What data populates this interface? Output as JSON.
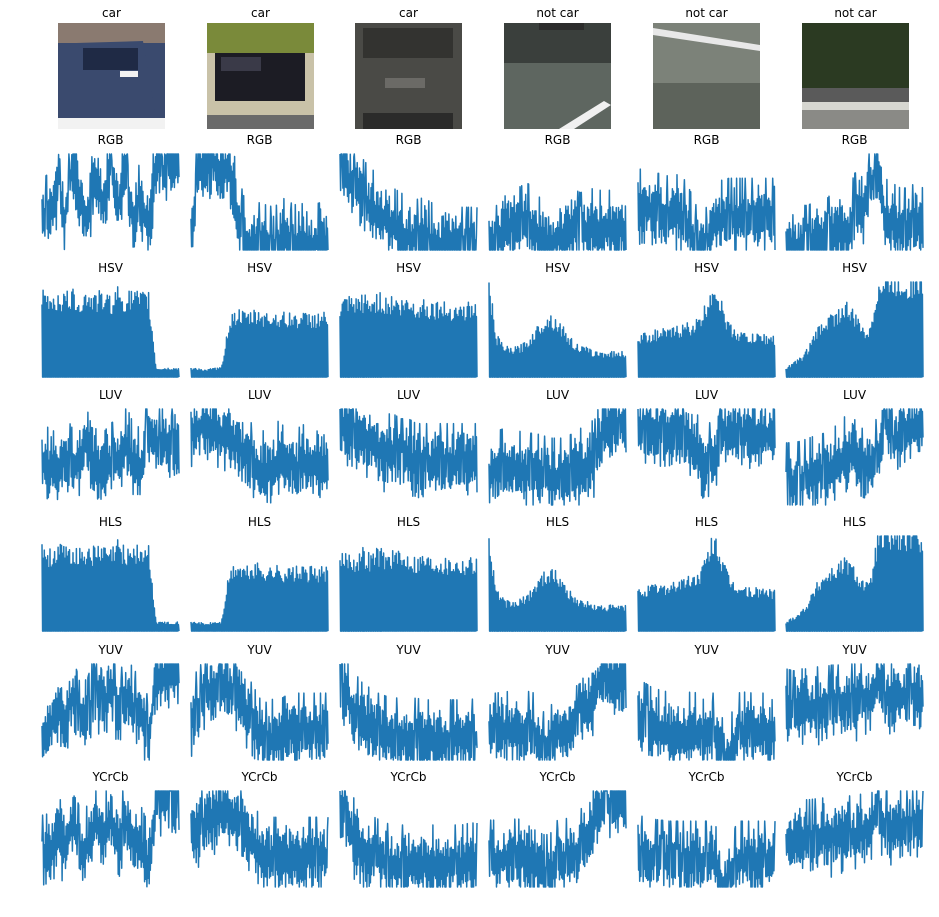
{
  "figure": {
    "line_color": "#1f77b4",
    "columns": [
      {
        "label": "car",
        "image": "car-rear-blue-hatchback"
      },
      {
        "label": "car",
        "image": "car-rear-dark-hatchback-street"
      },
      {
        "label": "car",
        "image": "car-rear-grey-closeup"
      },
      {
        "label": "not car",
        "image": "road-asphalt-white-stripe"
      },
      {
        "label": "not car",
        "image": "road-asphalt-lane-line"
      },
      {
        "label": "not car",
        "image": "trees-guardrail"
      }
    ],
    "rows": [
      "RGB",
      "HSV",
      "LUV",
      "HLS",
      "YUV",
      "YCrCb"
    ]
  },
  "chart_data": {
    "type": "line",
    "description_of_values": "each subplot is a flattened spatially-binned color feature vector; no axes or ticks are printed",
    "grid": false,
    "axes_visible": false,
    "image_titles": [
      "car",
      "car",
      "car",
      "not car",
      "not car",
      "not car"
    ],
    "subplot_titles": [
      "RGB",
      "HSV",
      "LUV",
      "HLS",
      "YUV",
      "YCrCb"
    ],
    "panels": [
      [
        {
          "features": [
            0.4,
            0.45,
            0.7,
            0.4,
            0.95,
            0.6,
            0.4,
            0.8,
            0.55,
            0.95,
            0.5,
            0.9,
            0.35,
            0.6,
            0.25,
            1.0,
            0.85,
            1.0,
            0.95
          ]
        },
        {
          "features": [
            0.2,
            0.9,
            0.95,
            0.98,
            0.9,
            0.95,
            0.5,
            0.2,
            0.1,
            0.15,
            0.12,
            0.1,
            0.2,
            0.15,
            0.12,
            0.15,
            0.12,
            0.15,
            0.15
          ]
        },
        {
          "features": [
            0.95,
            0.8,
            0.7,
            0.6,
            0.5,
            0.45,
            0.4,
            0.3,
            0.25,
            0.2,
            0.18,
            0.2,
            0.15,
            0.12,
            0.15,
            0.12,
            0.1,
            0.1,
            0.1
          ]
        },
        {
          "features": [
            0.1,
            0.12,
            0.3,
            0.33,
            0.31,
            0.35,
            0.3,
            0.15,
            0.1,
            0.2,
            0.2,
            0.3,
            0.25,
            0.28,
            0.3,
            0.26,
            0.28,
            0.3,
            0.3
          ]
        },
        {
          "features": [
            0.5,
            0.48,
            0.45,
            0.45,
            0.42,
            0.44,
            0.4,
            0.25,
            0.05,
            0.1,
            0.35,
            0.38,
            0.4,
            0.4,
            0.4,
            0.4,
            0.4,
            0.4,
            0.4
          ]
        },
        {
          "features": [
            0.1,
            0.1,
            0.12,
            0.12,
            0.2,
            0.15,
            0.25,
            0.3,
            0.2,
            0.45,
            0.5,
            0.7,
            0.95,
            0.4,
            0.35,
            0.3,
            0.3,
            0.35,
            0.3
          ]
        }
      ],
      [
        {
          "features": [
            0.82,
            0.78,
            0.8,
            0.79,
            0.81,
            0.77,
            0.82,
            0.78,
            0.8,
            0.76,
            0.85,
            0.78,
            0.82,
            0.78,
            0.8,
            0.1,
            0.1,
            0.1,
            0.1
          ]
        },
        {
          "features": [
            0.1,
            0.1,
            0.08,
            0.1,
            0.1,
            0.55,
            0.65,
            0.6,
            0.62,
            0.64,
            0.6,
            0.62,
            0.6,
            0.6,
            0.6,
            0.6,
            0.6,
            0.6,
            0.6
          ]
        },
        {
          "features": [
            0.7,
            0.75,
            0.72,
            0.78,
            0.73,
            0.8,
            0.74,
            0.77,
            0.72,
            0.75,
            0.7,
            0.74,
            0.7,
            0.72,
            0.68,
            0.7,
            0.68,
            0.7,
            0.7
          ]
        },
        {
          "features": [
            0.9,
            0.4,
            0.3,
            0.28,
            0.3,
            0.35,
            0.45,
            0.55,
            0.6,
            0.55,
            0.45,
            0.35,
            0.3,
            0.28,
            0.25,
            0.25,
            0.25,
            0.25,
            0.25
          ]
        },
        {
          "features": [
            0.4,
            0.42,
            0.44,
            0.45,
            0.45,
            0.48,
            0.5,
            0.52,
            0.55,
            0.7,
            0.95,
            0.7,
            0.5,
            0.45,
            0.42,
            0.4,
            0.42,
            0.4,
            0.4
          ]
        },
        {
          "features": [
            0.1,
            0.15,
            0.2,
            0.3,
            0.45,
            0.55,
            0.6,
            0.65,
            0.7,
            0.6,
            0.5,
            0.45,
            0.9,
            0.95,
            0.98,
            0.95,
            0.95,
            0.97,
            0.95
          ]
        }
      ],
      [
        {
          "features": [
            0.5,
            0.45,
            0.4,
            0.6,
            0.45,
            0.55,
            0.8,
            0.45,
            0.4,
            0.5,
            0.55,
            0.7,
            0.5,
            0.45,
            0.8,
            0.7,
            0.75,
            0.7,
            0.72
          ]
        },
        {
          "features": [
            0.8,
            0.85,
            0.9,
            0.88,
            0.8,
            0.75,
            0.7,
            0.6,
            0.5,
            0.45,
            0.4,
            0.5,
            0.55,
            0.5,
            0.45,
            0.5,
            0.48,
            0.5,
            0.5
          ]
        },
        {
          "features": [
            0.95,
            0.85,
            0.8,
            0.75,
            0.7,
            0.65,
            0.6,
            0.6,
            0.55,
            0.55,
            0.5,
            0.5,
            0.5,
            0.5,
            0.5,
            0.5,
            0.5,
            0.5,
            0.5
          ]
        },
        {
          "features": [
            0.4,
            0.42,
            0.45,
            0.45,
            0.42,
            0.4,
            0.4,
            0.38,
            0.35,
            0.35,
            0.35,
            0.4,
            0.45,
            0.5,
            0.55,
            0.85,
            0.9,
            0.88,
            0.9
          ]
        },
        {
          "features": [
            0.85,
            0.85,
            0.82,
            0.83,
            0.8,
            0.82,
            0.8,
            0.78,
            0.55,
            0.5,
            0.52,
            0.8,
            0.8,
            0.8,
            0.8,
            0.8,
            0.8,
            0.8,
            0.8
          ]
        },
        {
          "features": [
            0.3,
            0.3,
            0.32,
            0.35,
            0.38,
            0.4,
            0.45,
            0.5,
            0.6,
            0.65,
            0.45,
            0.5,
            0.55,
            0.95,
            0.7,
            0.8,
            0.85,
            0.9,
            0.9
          ]
        }
      ],
      [
        {
          "features": [
            0.82,
            0.78,
            0.8,
            0.79,
            0.81,
            0.77,
            0.82,
            0.78,
            0.8,
            0.76,
            0.85,
            0.78,
            0.82,
            0.78,
            0.8,
            0.1,
            0.1,
            0.1,
            0.1
          ]
        },
        {
          "features": [
            0.1,
            0.1,
            0.08,
            0.1,
            0.1,
            0.55,
            0.65,
            0.6,
            0.62,
            0.64,
            0.6,
            0.62,
            0.6,
            0.6,
            0.6,
            0.6,
            0.6,
            0.6,
            0.6
          ]
        },
        {
          "features": [
            0.7,
            0.75,
            0.72,
            0.78,
            0.73,
            0.8,
            0.74,
            0.77,
            0.72,
            0.75,
            0.7,
            0.74,
            0.7,
            0.72,
            0.68,
            0.7,
            0.68,
            0.7,
            0.7
          ]
        },
        {
          "features": [
            0.9,
            0.4,
            0.3,
            0.28,
            0.3,
            0.35,
            0.45,
            0.55,
            0.6,
            0.55,
            0.45,
            0.35,
            0.3,
            0.28,
            0.25,
            0.25,
            0.25,
            0.25,
            0.25
          ]
        },
        {
          "features": [
            0.4,
            0.42,
            0.44,
            0.45,
            0.45,
            0.48,
            0.5,
            0.52,
            0.55,
            0.7,
            0.95,
            0.7,
            0.5,
            0.45,
            0.42,
            0.4,
            0.42,
            0.4,
            0.4
          ]
        },
        {
          "features": [
            0.1,
            0.15,
            0.2,
            0.3,
            0.45,
            0.55,
            0.6,
            0.65,
            0.7,
            0.6,
            0.5,
            0.45,
            0.9,
            0.95,
            0.98,
            0.95,
            0.95,
            0.97,
            0.95
          ]
        }
      ],
      [
        {
          "features": [
            0.35,
            0.4,
            0.6,
            0.5,
            0.75,
            0.45,
            0.5,
            0.8,
            0.55,
            0.85,
            0.5,
            0.75,
            0.6,
            0.5,
            0.3,
            0.9,
            0.95,
            0.97,
            0.97
          ]
        },
        {
          "features": [
            0.5,
            0.6,
            0.75,
            0.8,
            0.85,
            0.8,
            0.75,
            0.6,
            0.45,
            0.3,
            0.25,
            0.3,
            0.3,
            0.35,
            0.35,
            0.35,
            0.35,
            0.35,
            0.35
          ]
        },
        {
          "features": [
            0.85,
            0.7,
            0.55,
            0.45,
            0.4,
            0.35,
            0.32,
            0.3,
            0.3,
            0.28,
            0.3,
            0.28,
            0.28,
            0.28,
            0.28,
            0.28,
            0.28,
            0.28,
            0.3
          ]
        },
        {
          "features": [
            0.35,
            0.35,
            0.37,
            0.36,
            0.36,
            0.37,
            0.35,
            0.15,
            0.2,
            0.35,
            0.36,
            0.4,
            0.45,
            0.6,
            0.8,
            0.95,
            0.9,
            0.95,
            0.95
          ]
        },
        {
          "features": [
            0.5,
            0.45,
            0.4,
            0.38,
            0.36,
            0.36,
            0.35,
            0.36,
            0.35,
            0.35,
            0.35,
            0.1,
            0.05,
            0.35,
            0.36,
            0.35,
            0.35,
            0.35,
            0.35
          ]
        },
        {
          "features": [
            0.6,
            0.58,
            0.6,
            0.6,
            0.62,
            0.62,
            0.64,
            0.64,
            0.65,
            0.66,
            0.68,
            0.7,
            0.9,
            0.7,
            0.72,
            0.75,
            0.7,
            0.8,
            0.7
          ]
        }
      ],
      [
        {
          "features": [
            0.4,
            0.42,
            0.6,
            0.5,
            0.75,
            0.45,
            0.5,
            0.75,
            0.55,
            0.8,
            0.5,
            0.75,
            0.6,
            0.5,
            0.3,
            0.95,
            0.97,
            0.97,
            0.97
          ]
        },
        {
          "features": [
            0.6,
            0.65,
            0.75,
            0.8,
            0.85,
            0.82,
            0.78,
            0.65,
            0.55,
            0.4,
            0.38,
            0.38,
            0.38,
            0.38,
            0.38,
            0.38,
            0.38,
            0.38,
            0.38
          ]
        },
        {
          "features": [
            0.9,
            0.7,
            0.55,
            0.45,
            0.4,
            0.36,
            0.32,
            0.3,
            0.3,
            0.3,
            0.3,
            0.3,
            0.3,
            0.3,
            0.3,
            0.3,
            0.3,
            0.32,
            0.32
          ]
        },
        {
          "features": [
            0.35,
            0.35,
            0.37,
            0.36,
            0.36,
            0.37,
            0.35,
            0.2,
            0.2,
            0.35,
            0.36,
            0.4,
            0.45,
            0.6,
            0.8,
            0.95,
            0.9,
            0.95,
            0.95
          ]
        },
        {
          "features": [
            0.4,
            0.38,
            0.36,
            0.35,
            0.34,
            0.34,
            0.34,
            0.34,
            0.34,
            0.34,
            0.34,
            0.1,
            0.05,
            0.34,
            0.34,
            0.34,
            0.34,
            0.34,
            0.34
          ]
        },
        {
          "features": [
            0.55,
            0.55,
            0.56,
            0.56,
            0.57,
            0.58,
            0.58,
            0.6,
            0.6,
            0.6,
            0.62,
            0.65,
            0.95,
            0.65,
            0.65,
            0.7,
            0.68,
            0.75,
            0.68
          ]
        }
      ]
    ]
  }
}
